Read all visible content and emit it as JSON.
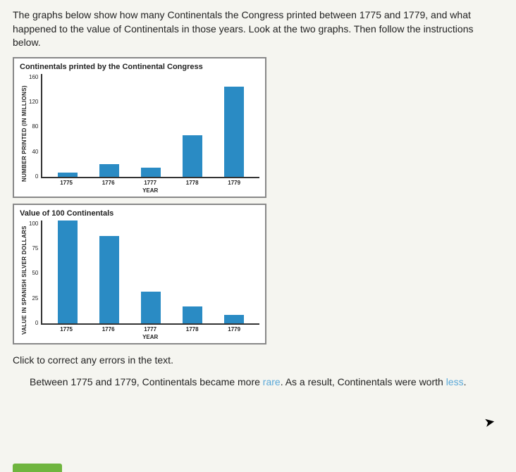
{
  "intro": "The graphs below show how many Continentals the Congress printed between 1775 and 1779, and what happened to the value of Continentals in those years. Look at the two graphs. Then follow the instructions below.",
  "chart1": {
    "title": "Continentals printed by the Continental Congress",
    "ylabel": "NUMBER PRINTED (IN MILLIONS)",
    "xlabel": "YEAR",
    "ylim": [
      0,
      160
    ],
    "yticks": [
      160,
      120,
      80,
      40,
      0
    ],
    "categories": [
      "1775",
      "1776",
      "1777",
      "1778",
      "1779"
    ],
    "values": [
      6,
      20,
      14,
      64,
      140
    ],
    "bar_color": "#2a8bc4",
    "background": "#ffffff"
  },
  "chart2": {
    "title": "Value of 100 Continentals",
    "ylabel": "VALUE IN SPANISH SILVER DOLLARS",
    "xlabel": "YEAR",
    "ylim": [
      0,
      100
    ],
    "yticks": [
      100,
      75,
      50,
      25,
      0
    ],
    "categories": [
      "1775",
      "1776",
      "1777",
      "1778",
      "1779"
    ],
    "values": [
      100,
      85,
      31,
      16,
      8
    ],
    "bar_color": "#2a8bc4",
    "background": "#ffffff"
  },
  "instruction": "Click to correct any errors in the text.",
  "sentence_parts": {
    "p1": "Between 1775 and 1779, Continentals became more ",
    "word1": "rare",
    "p2": ". As a result, Continentals were worth ",
    "word2": "less",
    "p3": "."
  }
}
